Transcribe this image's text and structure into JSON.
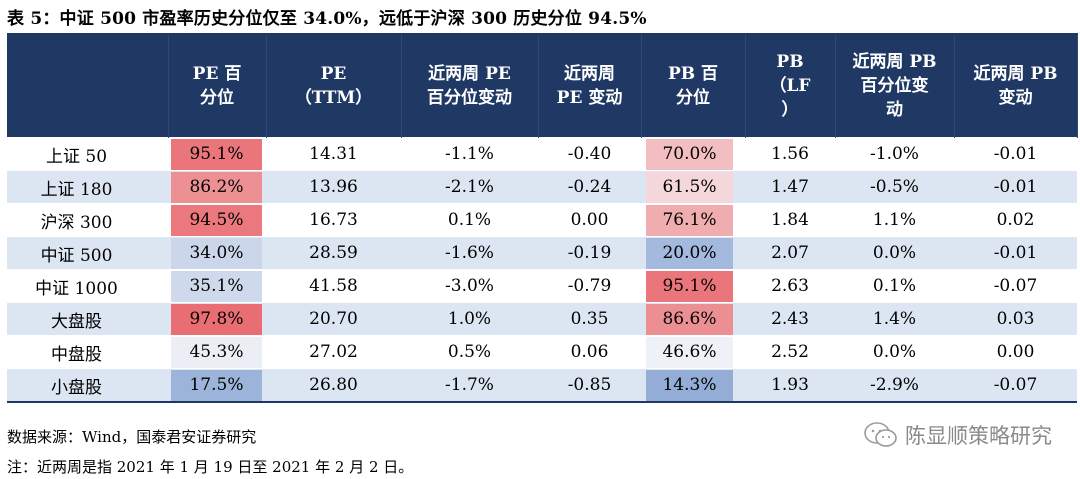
{
  "title": "表 5：中证 500 市盈率历史分位仅至 34.0%，远低于沪深 300 历史分位 94.5%",
  "columns": [
    "",
    "PE 百\n分位",
    "PE\n（TTM）",
    "近两周 PE\n百分位变动",
    "近两周\nPE 变动",
    "PB 百\n分位",
    "PB\n（LF\n）",
    "近两周 PB\n百分位变\n动",
    "近两周 PB\n变动"
  ],
  "rows": [
    {
      "name": "上证 50",
      "pe_pct": "95.1%",
      "pe": "14.31",
      "pe_pct_chg": "-1.1%",
      "pe_chg": "-0.40",
      "pb_pct": "70.0%",
      "pb": "1.56",
      "pb_pct_chg": "-1.0%",
      "pb_chg": "-0.01",
      "pe_pct_value": 95.1,
      "pb_pct_value": 70.0
    },
    {
      "name": "上证 180",
      "pe_pct": "86.2%",
      "pe": "13.96",
      "pe_pct_chg": "-2.1%",
      "pe_chg": "-0.24",
      "pb_pct": "61.5%",
      "pb": "1.47",
      "pb_pct_chg": "-0.5%",
      "pb_chg": "-0.01",
      "pe_pct_value": 86.2,
      "pb_pct_value": 61.5
    },
    {
      "name": "沪深 300",
      "pe_pct": "94.5%",
      "pe": "16.73",
      "pe_pct_chg": "0.1%",
      "pe_chg": "0.00",
      "pb_pct": "76.1%",
      "pb": "1.84",
      "pb_pct_chg": "1.1%",
      "pb_chg": "0.02",
      "pe_pct_value": 94.5,
      "pb_pct_value": 76.1
    },
    {
      "name": "中证 500",
      "pe_pct": "34.0%",
      "pe": "28.59",
      "pe_pct_chg": "-1.6%",
      "pe_chg": "-0.19",
      "pb_pct": "20.0%",
      "pb": "2.07",
      "pb_pct_chg": "0.0%",
      "pb_chg": "-0.01",
      "pe_pct_value": 34.0,
      "pb_pct_value": 20.0
    },
    {
      "name": "中证 1000",
      "pe_pct": "35.1%",
      "pe": "41.58",
      "pe_pct_chg": "-3.0%",
      "pe_chg": "-0.79",
      "pb_pct": "95.1%",
      "pb": "2.63",
      "pb_pct_chg": "0.1%",
      "pb_chg": "-0.07",
      "pe_pct_value": 35.1,
      "pb_pct_value": 95.1
    },
    {
      "name": "大盘股",
      "pe_pct": "97.8%",
      "pe": "20.70",
      "pe_pct_chg": "1.0%",
      "pe_chg": "0.35",
      "pb_pct": "86.6%",
      "pb": "2.43",
      "pb_pct_chg": "1.4%",
      "pb_chg": "0.03",
      "pe_pct_value": 97.8,
      "pb_pct_value": 86.6
    },
    {
      "name": "中盘股",
      "pe_pct": "45.3%",
      "pe": "27.02",
      "pe_pct_chg": "0.5%",
      "pe_chg": "0.06",
      "pb_pct": "46.6%",
      "pb": "2.52",
      "pb_pct_chg": "0.0%",
      "pb_chg": "0.00",
      "pe_pct_value": 45.3,
      "pb_pct_value": 46.6
    },
    {
      "name": "小盘股",
      "pe_pct": "17.5%",
      "pe": "26.80",
      "pe_pct_chg": "-1.7%",
      "pe_chg": "-0.85",
      "pb_pct": "14.3%",
      "pb": "1.93",
      "pb_pct_chg": "-2.9%",
      "pb_chg": "-0.07",
      "pe_pct_value": 17.5,
      "pb_pct_value": 14.3
    }
  ],
  "colors": {
    "header_bg": "#1f3864",
    "stripe": "#dce6f2",
    "heat_high": "#e8686d",
    "heat_low": "#6b8fc9"
  },
  "source": "数据来源：Wind，国泰君安证券研究",
  "note": "注：近两周是指 2021 年 1 月 19 日至 2021 年 2 月 2 日。",
  "watermark": "陈显顺策略研究"
}
